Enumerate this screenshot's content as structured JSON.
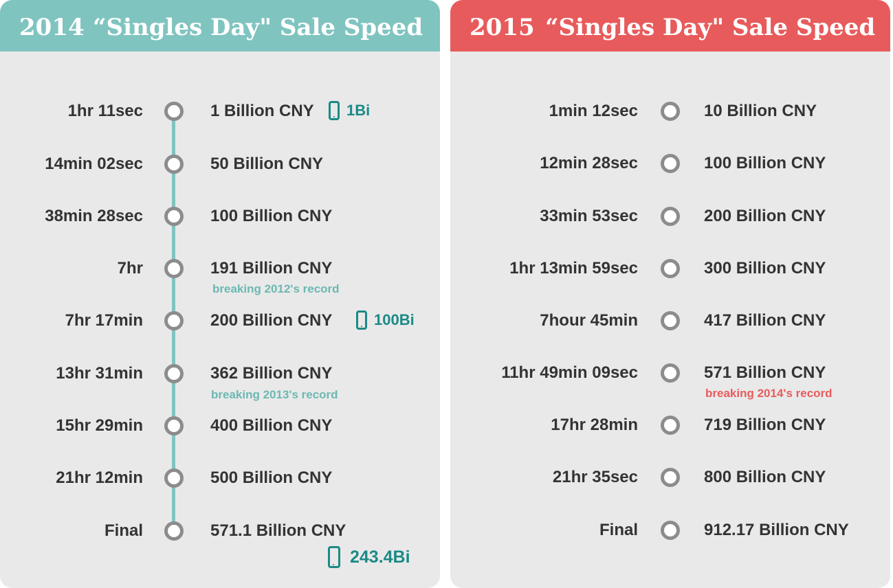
{
  "left_panel": {
    "year": "2014",
    "title": "“Singles Day\" Sale Speed",
    "milestones": [
      {
        "time": "1hr 11sec",
        "amount": "1 Billion CNY"
      },
      {
        "time": "14min 02sec",
        "amount": "50 Billion CNY"
      },
      {
        "time": "38min 28sec",
        "amount": "100 Billion CNY"
      },
      {
        "time": "7hr",
        "amount": "191 Billion CNY"
      },
      {
        "time": "7hr 17min",
        "amount": "200 Billion CNY"
      },
      {
        "time": "13hr 31min",
        "amount": "362 Billion CNY"
      },
      {
        "time": "15hr 29min",
        "amount": "400 Billion CNY"
      },
      {
        "time": "21hr 12min",
        "amount": "500 Billion CNY"
      },
      {
        "time": "Final",
        "amount": "571.1 Billion CNY"
      }
    ],
    "notes": {
      "record_2012": "breaking 2012's record",
      "record_2013": "breaking 2013's record"
    },
    "mobile": {
      "m1": "1Bi",
      "m2": "100Bi",
      "m3": "243.4Bi"
    }
  },
  "right_panel": {
    "year": "2015",
    "title": "“Singles Day\" Sale Speed",
    "milestones": [
      {
        "time": "1min 12sec",
        "amount": "10 Billion CNY"
      },
      {
        "time": "12min 28sec",
        "amount": "100 Billion CNY"
      },
      {
        "time": "33min 53sec",
        "amount": "200 Billion CNY"
      },
      {
        "time": "1hr 13min 59sec",
        "amount": "300 Billion CNY"
      },
      {
        "time": "7hour 45min",
        "amount": "417 Billion CNY"
      },
      {
        "time": "11hr 49min 09sec",
        "amount": "571 Billion CNY"
      },
      {
        "time": "17hr 28min",
        "amount": "719 Billion CNY"
      },
      {
        "time": "21hr 35sec",
        "amount": "800 Billion CNY"
      },
      {
        "time": "Final",
        "amount": "912.17 Billion CNY"
      }
    ],
    "notes": {
      "record_2014": "breaking 2014's record"
    }
  },
  "colors": {
    "teal": "#80c4c0",
    "red": "#e85b5c",
    "node": "#8c8c8c",
    "panel": "#e9e9e9",
    "text": "#333333",
    "mobile": "#1b8a86"
  }
}
